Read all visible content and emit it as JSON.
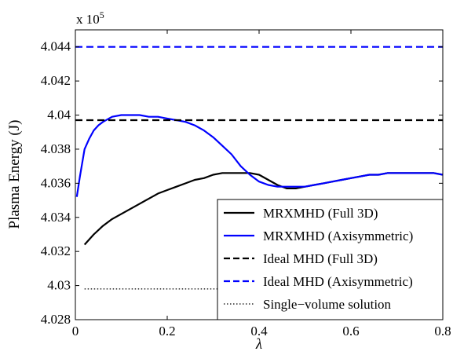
{
  "chart_data": {
    "type": "line",
    "xlabel": "λ",
    "ylabel": "Plasma Energy (J)",
    "y_multiplier": "x 10",
    "y_multiplier_exp": "5",
    "xlim": [
      0,
      0.8
    ],
    "ylim": [
      4.028,
      4.045
    ],
    "x_ticks": [
      0,
      0.2,
      0.4,
      0.6,
      0.8
    ],
    "x_tick_labels": [
      "0",
      "0.2",
      "0.4",
      "0.6",
      "0.8"
    ],
    "y_ticks": [
      4.028,
      4.03,
      4.032,
      4.034,
      4.036,
      4.038,
      4.04,
      4.042,
      4.044
    ],
    "y_tick_labels": [
      "4.028",
      "4.03",
      "4.032",
      "4.034",
      "4.036",
      "4.038",
      "4.04",
      "4.042",
      "4.044"
    ],
    "grid": false,
    "legend_position": "bottom-right",
    "series": [
      {
        "name": "MRXMHD (Full 3D)",
        "color": "#000000",
        "dash": "solid",
        "x": [
          0.02,
          0.04,
          0.06,
          0.08,
          0.1,
          0.12,
          0.14,
          0.16,
          0.18,
          0.2,
          0.22,
          0.24,
          0.26,
          0.28,
          0.3,
          0.32,
          0.34,
          0.36,
          0.38,
          0.4,
          0.42,
          0.44,
          0.46,
          0.48,
          0.5,
          0.52,
          0.54,
          0.56,
          0.58,
          0.6,
          0.62,
          0.64,
          0.66,
          0.68,
          0.7,
          0.72,
          0.74,
          0.76,
          0.78,
          0.8
        ],
        "y": [
          4.0324,
          4.033,
          4.0335,
          4.0339,
          4.0342,
          4.0345,
          4.0348,
          4.0351,
          4.0354,
          4.0356,
          4.0358,
          4.036,
          4.0362,
          4.0363,
          4.0365,
          4.0366,
          4.0366,
          4.0366,
          4.0366,
          4.0365,
          4.0362,
          4.0359,
          4.0357,
          4.0357,
          4.0358,
          4.0359,
          4.036,
          4.0361,
          4.0362,
          4.0363,
          4.0364,
          4.0365,
          4.0365,
          4.0366,
          4.0366,
          4.0366,
          4.0366,
          4.0366,
          4.0366,
          4.0365
        ]
      },
      {
        "name": "MRXMHD (Axisymmetric)",
        "color": "#0000ff",
        "dash": "solid",
        "x": [
          0.003,
          0.01,
          0.02,
          0.03,
          0.04,
          0.05,
          0.06,
          0.08,
          0.1,
          0.12,
          0.14,
          0.16,
          0.18,
          0.2,
          0.22,
          0.24,
          0.26,
          0.28,
          0.3,
          0.32,
          0.34,
          0.36,
          0.38,
          0.4,
          0.42,
          0.44,
          0.46,
          0.48,
          0.5,
          0.52,
          0.54,
          0.56,
          0.58,
          0.6,
          0.62,
          0.64,
          0.66,
          0.68,
          0.7,
          0.72,
          0.74,
          0.76,
          0.78,
          0.8
        ],
        "y": [
          4.0352,
          4.0364,
          4.038,
          4.0386,
          4.0391,
          4.0394,
          4.0396,
          4.0399,
          4.04,
          4.04,
          4.04,
          4.0399,
          4.0399,
          4.0398,
          4.0397,
          4.0396,
          4.0394,
          4.0391,
          4.0387,
          4.0382,
          4.0377,
          4.037,
          4.0365,
          4.0361,
          4.0359,
          4.0358,
          4.0358,
          4.0358,
          4.0358,
          4.0359,
          4.036,
          4.0361,
          4.0362,
          4.0363,
          4.0364,
          4.0365,
          4.0365,
          4.0366,
          4.0366,
          4.0366,
          4.0366,
          4.0366,
          4.0366,
          4.0365
        ]
      },
      {
        "name": "Ideal MHD (Full 3D)",
        "color": "#000000",
        "dash": "dashed",
        "x": [
          0,
          0.8
        ],
        "y": [
          4.0397,
          4.0397
        ]
      },
      {
        "name": "Ideal MHD (Axisymmetric)",
        "color": "#0000ff",
        "dash": "dashed",
        "x": [
          0,
          0.8
        ],
        "y": [
          4.044,
          4.044
        ]
      },
      {
        "name": "Single−volume solution",
        "color": "#000000",
        "dash": "dotted",
        "x": [
          0.02,
          0.8
        ],
        "y": [
          4.0298,
          4.0298
        ]
      }
    ]
  }
}
